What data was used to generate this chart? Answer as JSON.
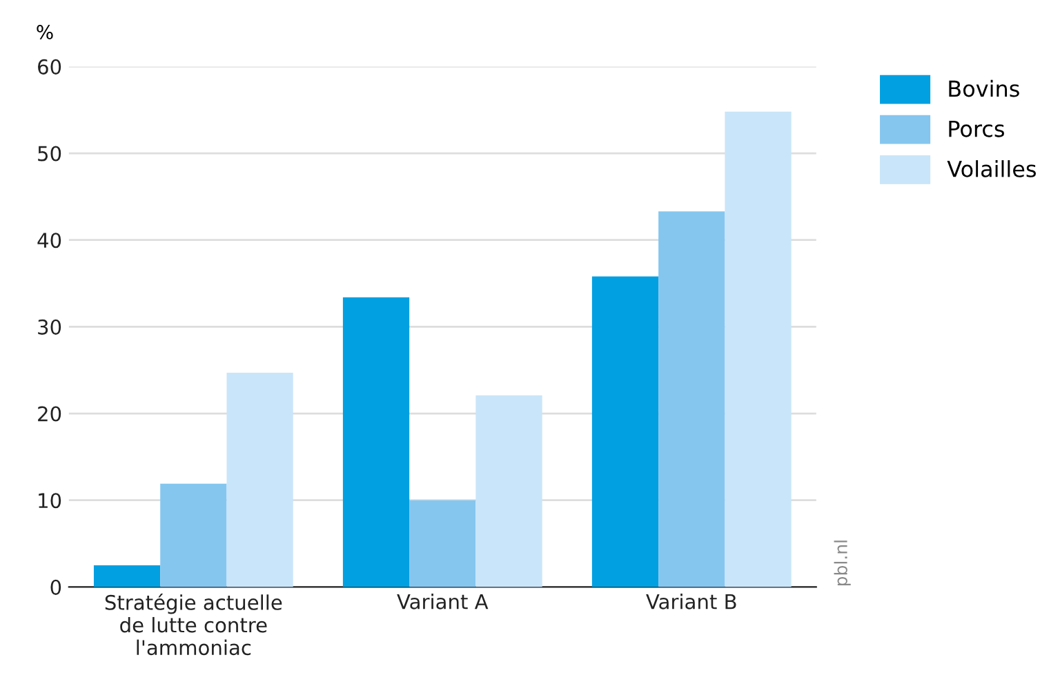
{
  "chart_data": {
    "type": "bar",
    "ylabel": "%",
    "categories": [
      "Stratégie actuelle\nde lutte contre\nl'ammoniac",
      "Variant A",
      "Variant B"
    ],
    "series": [
      {
        "name": "Bovins",
        "color": "#00a0e1",
        "values": [
          2.5,
          33.4,
          35.8
        ]
      },
      {
        "name": "Porcs",
        "color": "#85c6ef",
        "values": [
          11.9,
          10.0,
          43.3
        ]
      },
      {
        "name": "Volailles",
        "color": "#c9e5f9",
        "values": [
          24.7,
          22.1,
          54.8
        ]
      }
    ],
    "ylim": [
      0,
      60
    ],
    "yticks": [
      0,
      10,
      20,
      30,
      40,
      50,
      60
    ],
    "grid": "y",
    "legend": "top right",
    "annotations": [
      "pbl.nl"
    ]
  }
}
